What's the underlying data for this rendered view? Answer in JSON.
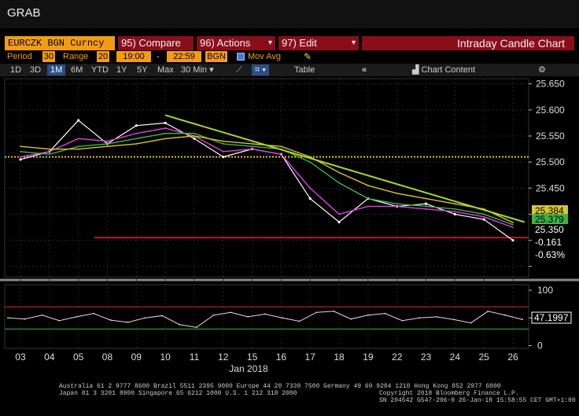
{
  "app_title": "GRAB",
  "command_bar": {
    "ticker": "EURCZK BGN Curncy",
    "compare_label": "95) Compare",
    "actions_label": "96) Actions",
    "edit_label": "97) Edit",
    "chart_type_label": "Intraday Candle Chart"
  },
  "controls": {
    "period_label": "Period",
    "period_value": "30",
    "range_label": "Range",
    "range_value": "20",
    "start_time": "19:00",
    "dash": "-",
    "end_time": "22:59",
    "source": "BGN",
    "mov_avg_label": "Mov Avg"
  },
  "tabs": {
    "items": [
      "1D",
      "3D",
      "1M",
      "6M",
      "YTD",
      "1Y",
      "5Y",
      "Max",
      "30 Min"
    ],
    "active": "1M",
    "table_label": "Table",
    "chart_content_label": "Chart Content"
  },
  "colors": {
    "orange": "#f39c12",
    "price_line": "#ffffff",
    "ma_fast": "#e040e0",
    "ma_mid": "#3db34a",
    "ma_slow": "#d6c62a",
    "trendline": "#a8d62a",
    "support": "#e8202a",
    "dotted_level": "#e6c020"
  },
  "chart_data": {
    "type": "line",
    "title": "",
    "xlabel": "Jan 2018",
    "ylabel": "",
    "ylim": [
      25.28,
      25.66
    ],
    "yticks": [
      25.3,
      25.35,
      25.4,
      25.45,
      25.5,
      25.55,
      25.6,
      25.65
    ],
    "ytick_labels": [
      "",
      "",
      "25.400",
      "25.450",
      "25.500",
      "25.550",
      "25.600",
      "25.650"
    ],
    "x_ticks": [
      "03",
      "04",
      "05",
      "08",
      "09",
      "10",
      "11",
      "12",
      "15",
      "16",
      "17",
      "18",
      "19",
      "22",
      "23",
      "24",
      "25",
      "26"
    ],
    "series": [
      {
        "role": "price",
        "x": [
          0,
          1,
          2,
          3,
          4,
          5,
          6,
          7,
          8,
          9,
          10,
          11,
          12,
          13,
          14,
          15,
          16,
          17
        ],
        "values": [
          25.505,
          25.52,
          25.58,
          25.535,
          25.57,
          25.575,
          25.545,
          25.51,
          25.525,
          25.515,
          25.43,
          25.385,
          25.43,
          25.415,
          25.42,
          25.4,
          25.39,
          25.35
        ]
      },
      {
        "role": "ma_fast",
        "x": [
          0,
          1,
          2,
          3,
          4,
          5,
          6,
          7,
          8,
          9,
          10,
          11,
          12,
          13,
          14,
          15,
          16,
          17
        ],
        "values": [
          25.51,
          25.52,
          25.545,
          25.54,
          25.555,
          25.565,
          25.55,
          25.52,
          25.525,
          25.515,
          25.45,
          25.4,
          25.415,
          25.415,
          25.41,
          25.405,
          25.395,
          25.375
        ]
      },
      {
        "role": "ma_mid",
        "x": [
          0,
          1,
          2,
          3,
          4,
          5,
          6,
          7,
          8,
          9,
          10,
          11,
          12,
          13,
          14,
          15,
          16,
          17
        ],
        "values": [
          25.52,
          25.515,
          25.53,
          25.535,
          25.545,
          25.555,
          25.555,
          25.535,
          25.53,
          25.525,
          25.5,
          25.46,
          25.43,
          25.42,
          25.415,
          25.41,
          25.4,
          25.38
        ]
      },
      {
        "role": "ma_slow",
        "x": [
          0,
          1,
          2,
          3,
          4,
          5,
          6,
          7,
          8,
          9,
          10,
          11,
          12,
          13,
          14,
          15,
          16,
          17
        ],
        "values": [
          25.53,
          25.525,
          25.525,
          25.53,
          25.535,
          25.545,
          25.55,
          25.54,
          25.535,
          25.53,
          25.51,
          25.48,
          25.455,
          25.44,
          25.43,
          25.42,
          25.41,
          25.384
        ]
      }
    ],
    "trendline": {
      "x": [
        5,
        17.4
      ],
      "values": [
        25.59,
        25.385
      ]
    },
    "support_level": 25.355,
    "dotted_level": 25.51,
    "last_price_tags": {
      "ma_slow": "25.384",
      "ma_mid": "25.379",
      "price": "25.350",
      "change": "-0.161",
      "change_pct": "-0.63%"
    },
    "oscillator": {
      "ylim": [
        -5,
        110
      ],
      "yticks": [
        0,
        50,
        100
      ],
      "ytick_labels": [
        "0",
        "50",
        "100"
      ],
      "upper_band": 70,
      "lower_band": 30,
      "values": [
        50,
        48,
        55,
        45,
        52,
        58,
        46,
        42,
        50,
        54,
        38,
        33,
        55,
        60,
        52,
        57,
        50,
        44,
        60,
        62,
        48,
        55,
        58,
        45,
        50,
        52,
        47,
        41,
        62,
        55,
        47.2
      ],
      "last_value": "47.1997"
    }
  },
  "footer": {
    "line1": "Australia 61 2 9777 8600 Brazil 5511 2395 9000 Europe 44 20 7330 7500 Germany 49 69 9204 1210 Hong Kong 852 2977 6000",
    "line2_left": "Japan 81 3 3201 8900       Singapore 65 6212 1000       U.S. 1 212 318 2000",
    "line2_right": "Copyright 2018 Bloomberg Finance L.P.",
    "line3": "SN 204542 G547-206-0 26-Jan-18 15:58:55 CET  GMT+1:00"
  }
}
